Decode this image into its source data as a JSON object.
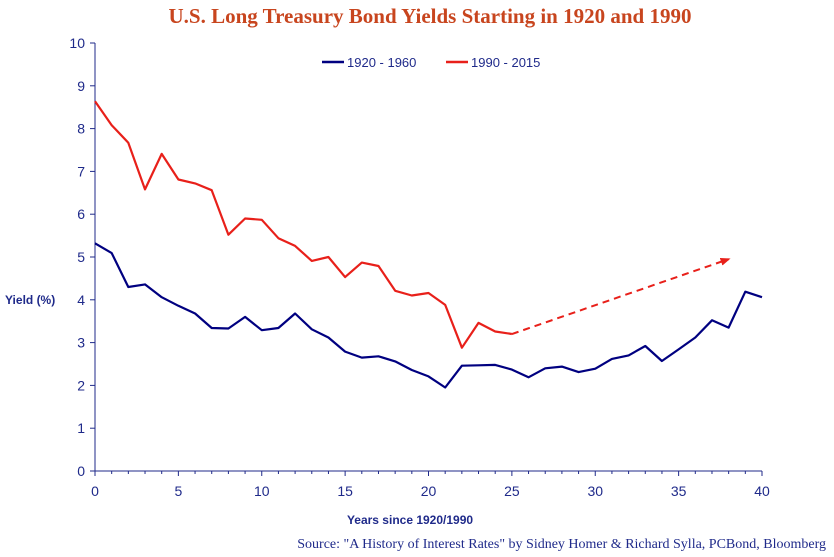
{
  "chart_data": {
    "type": "line",
    "title": "U.S. Long Treasury Bond Yields Starting in 1920 and 1990",
    "xlabel": "Years since 1920/1990",
    "ylabel": "Yield (%)",
    "source": "Source: \"A History of Interest Rates\" by Sidney Homer & Richard Sylla, PCBond, Bloomberg",
    "xlim": [
      0,
      40
    ],
    "ylim": [
      0,
      10
    ],
    "x_ticks": [
      0,
      5,
      10,
      15,
      20,
      25,
      30,
      35,
      40
    ],
    "y_ticks": [
      0,
      1,
      2,
      3,
      4,
      5,
      6,
      7,
      8,
      9,
      10
    ],
    "legend_position": "top-center",
    "grid": false,
    "series": [
      {
        "name": "1920 - 1960",
        "color": "#000080",
        "x": [
          0,
          1,
          2,
          3,
          4,
          5,
          6,
          7,
          8,
          9,
          10,
          11,
          12,
          13,
          14,
          15,
          16,
          17,
          18,
          19,
          20,
          21,
          22,
          23,
          24,
          25,
          26,
          27,
          28,
          29,
          30,
          31,
          32,
          33,
          34,
          35,
          36,
          37,
          38,
          39,
          40
        ],
        "values": [
          5.32,
          5.09,
          4.3,
          4.36,
          4.06,
          3.86,
          3.68,
          3.34,
          3.33,
          3.6,
          3.29,
          3.34,
          3.68,
          3.31,
          3.12,
          2.79,
          2.65,
          2.68,
          2.56,
          2.36,
          2.21,
          1.95,
          2.46,
          2.47,
          2.48,
          2.37,
          2.19,
          2.4,
          2.44,
          2.31,
          2.39,
          2.62,
          2.7,
          2.92,
          2.57,
          2.84,
          3.12,
          3.52,
          3.35,
          4.19,
          4.06
        ]
      },
      {
        "name": "1990 - 2015",
        "color": "#e8201a",
        "x": [
          0,
          1,
          2,
          3,
          4,
          5,
          6,
          7,
          8,
          9,
          10,
          11,
          12,
          13,
          14,
          15,
          16,
          17,
          18,
          19,
          20,
          21,
          22,
          23,
          24,
          25
        ],
        "values": [
          8.64,
          8.08,
          7.67,
          6.58,
          7.41,
          6.81,
          6.72,
          6.56,
          5.52,
          5.9,
          5.87,
          5.44,
          5.26,
          4.91,
          5.0,
          4.53,
          4.87,
          4.79,
          4.21,
          4.1,
          4.16,
          3.88,
          2.88,
          3.46,
          3.26,
          3.2
        ]
      }
    ],
    "annotations": [
      {
        "type": "dashed-arrow",
        "color": "#e8201a",
        "x": [
          25,
          38
        ],
        "y": [
          3.2,
          4.95
        ]
      }
    ]
  }
}
